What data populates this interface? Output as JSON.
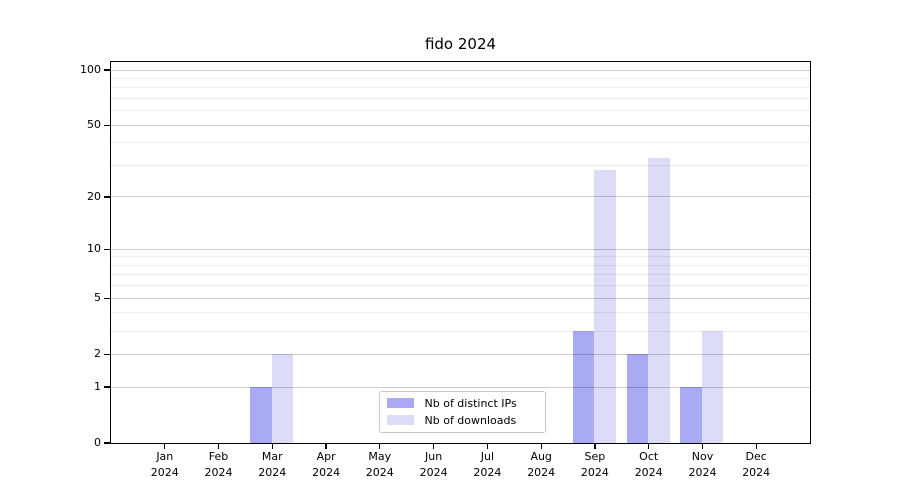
{
  "chart_data": {
    "type": "bar",
    "title": "fido 2024",
    "categories": [
      "Jan",
      "Feb",
      "Mar",
      "Apr",
      "May",
      "Jun",
      "Jul",
      "Aug",
      "Sep",
      "Oct",
      "Nov",
      "Dec"
    ],
    "x_tick_second_line": "2024",
    "series": [
      {
        "name": "Nb of distinct IPs",
        "color": "#a9a9f4",
        "values": [
          0,
          0,
          1,
          0,
          0,
          0,
          0,
          0,
          3,
          2,
          1,
          0
        ]
      },
      {
        "name": "Nb of downloads",
        "color": "#dcdcf8",
        "values": [
          0,
          0,
          2,
          0,
          0,
          0,
          0,
          0,
          28,
          33,
          3,
          0
        ]
      }
    ],
    "y_axis": {
      "scale": "log1p",
      "ylim": [
        0,
        110.5
      ],
      "major_ticks": [
        0,
        1,
        2,
        5,
        10,
        20,
        50,
        100
      ],
      "minor_gridlines": [
        3,
        4,
        6,
        7,
        8,
        9,
        30,
        40,
        60,
        70,
        80,
        90
      ]
    },
    "xlabel": "",
    "ylabel": "",
    "grid": true,
    "legend": {
      "position": "inside-bottom-center"
    }
  }
}
